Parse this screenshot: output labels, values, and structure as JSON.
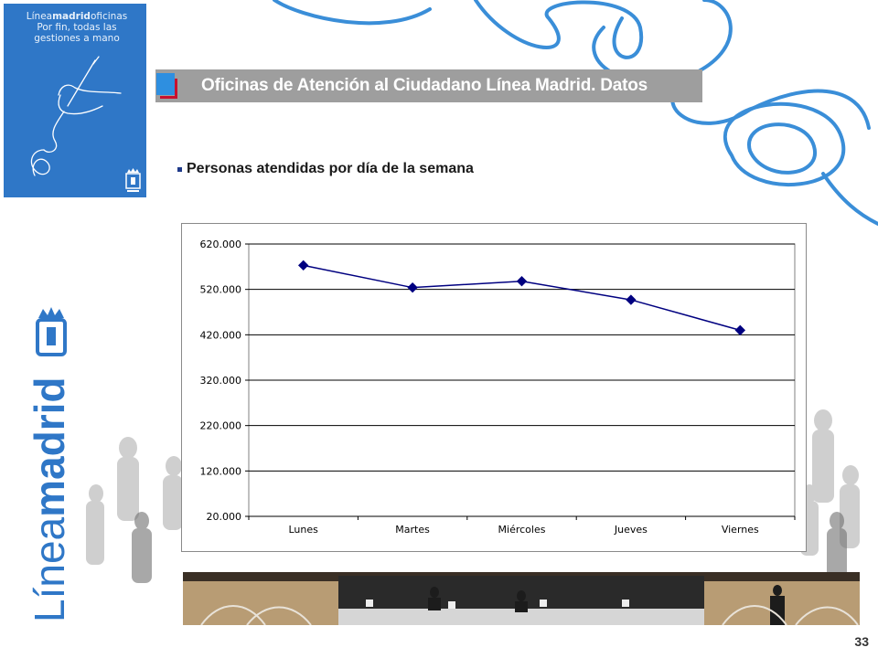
{
  "poster": {
    "line1_prefix": "Línea",
    "line1_bold": "madrid",
    "line1_suffix": "oficinas",
    "line2": "Por fin, todas las",
    "line3": "gestiones a mano"
  },
  "header": {
    "title": "Oficinas de Atención al Ciudadano Línea Madrid. Datos"
  },
  "section": {
    "subtitle": "Personas atendidas por día de la semana"
  },
  "brand": {
    "prefix": "Línea",
    "bold": "madrid"
  },
  "colors": {
    "accent_blue": "#2f77c7",
    "title_bar": "#9e9e9e",
    "series": "#000080",
    "brand_red": "#c8102e"
  },
  "chart_data": {
    "type": "line",
    "categories": [
      "Lunes",
      "Martes",
      "Miércoles",
      "Jueves",
      "Viernes"
    ],
    "series": [
      {
        "values": [
          573000,
          524000,
          538000,
          497000,
          430000
        ]
      }
    ],
    "ylim": [
      20000,
      620000
    ],
    "yticks": [
      20000,
      120000,
      220000,
      320000,
      420000,
      520000,
      620000
    ],
    "ytick_labels": [
      "20.000",
      "120.000",
      "220.000",
      "320.000",
      "420.000",
      "520.000",
      "620.000"
    ],
    "grid": true,
    "marker": "diamond"
  },
  "footer": {
    "page_number": "33"
  }
}
